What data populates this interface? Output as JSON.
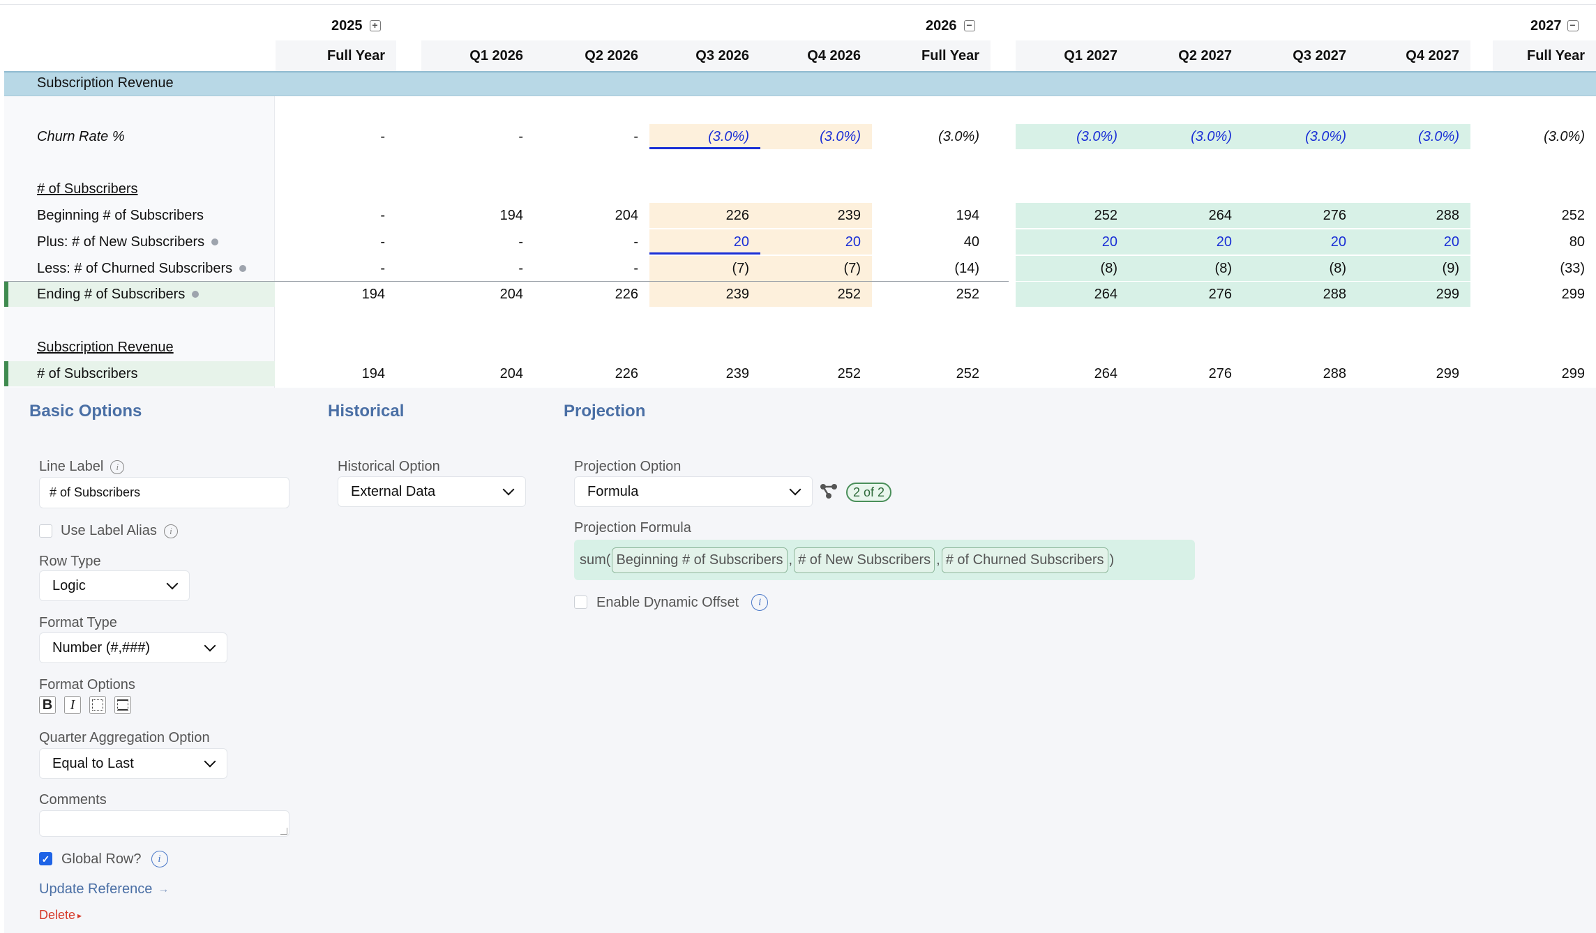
{
  "header": {
    "years": [
      {
        "label": "2025",
        "toggle": "+"
      },
      {
        "label": "2026",
        "toggle": "−"
      },
      {
        "label": "2027",
        "toggle": "−"
      }
    ],
    "columns": [
      "Full Year",
      "Q1 2026",
      "Q2 2026",
      "Q3 2026",
      "Q4 2026",
      "Full Year",
      "Q1 2027",
      "Q2 2027",
      "Q3 2027",
      "Q4 2027",
      "Full Year"
    ]
  },
  "section_title": "Subscription Revenue",
  "rows": {
    "churn": {
      "label": "Churn Rate %",
      "values": [
        "-",
        "-",
        "-",
        "(3.0%)",
        "(3.0%)",
        "(3.0%)",
        "(3.0%)",
        "(3.0%)",
        "(3.0%)",
        "(3.0%)",
        "(3.0%)"
      ]
    },
    "subs_heading": "# of Subscribers",
    "beginning": {
      "label": "Beginning # of Subscribers",
      "values": [
        "-",
        "194",
        "204",
        "226",
        "239",
        "194",
        "252",
        "264",
        "276",
        "288",
        "252"
      ]
    },
    "new": {
      "label": "Plus: # of New Subscribers",
      "values": [
        "-",
        "-",
        "-",
        "20",
        "20",
        "40",
        "20",
        "20",
        "20",
        "20",
        "80"
      ]
    },
    "churned": {
      "label": "Less: # of Churned Subscribers",
      "values": [
        "-",
        "-",
        "-",
        "(7)",
        "(7)",
        "(14)",
        "(8)",
        "(8)",
        "(8)",
        "(9)",
        "(33)"
      ]
    },
    "ending": {
      "label": "Ending # of Subscribers",
      "values": [
        "194",
        "204",
        "226",
        "239",
        "252",
        "252",
        "264",
        "276",
        "288",
        "299",
        "299"
      ]
    },
    "rev_heading": "Subscription Revenue",
    "subs_total": {
      "label": "# of Subscribers",
      "values": [
        "194",
        "204",
        "226",
        "239",
        "252",
        "252",
        "264",
        "276",
        "288",
        "299",
        "299"
      ]
    }
  },
  "panel": {
    "basic": {
      "title": "Basic Options",
      "line_label": "Line Label",
      "line_label_value": "# of Subscribers",
      "use_alias": "Use Label Alias",
      "row_type": "Row Type",
      "row_type_value": "Logic",
      "format_type": "Format Type",
      "format_type_value": "Number (#,###)",
      "format_options": "Format Options",
      "fmt_bold": "B",
      "fmt_italic": "I",
      "quarter_agg": "Quarter Aggregation Option",
      "quarter_agg_value": "Equal to Last",
      "comments": "Comments",
      "global_row": "Global Row?",
      "update_ref": "Update Reference",
      "update_ref_arrow": "→",
      "delete": "Delete",
      "delete_arrow": "▸",
      "check_mark": "✓",
      "info_i": "i"
    },
    "historical": {
      "title": "Historical",
      "option_label": "Historical Option",
      "option_value": "External Data"
    },
    "projection": {
      "title": "Projection",
      "option_label": "Projection Option",
      "option_value": "Formula",
      "badge": "2 of 2",
      "formula_label": "Projection Formula",
      "formula_prefix": "sum(",
      "tokens": [
        "Beginning # of Subscribers",
        "# of New Subscribers",
        "# of Churned Subscribers"
      ],
      "sep": ",",
      "formula_suffix": ")",
      "dynamic_offset": "Enable Dynamic Offset"
    }
  },
  "colors": {
    "accent": "#4a6fa5",
    "band": "#b8d8e6",
    "input_tan": "#fdf0dc",
    "input_green": "#d8f1e7",
    "input_blue_text": "#1a2fd6",
    "danger": "#d63a2a"
  },
  "icons": {
    "year_expand": "plus-square-icon",
    "year_collapse": "minus-square-icon",
    "chevron": "chevron-down-icon",
    "info": "info-icon",
    "network": "network-icon"
  }
}
